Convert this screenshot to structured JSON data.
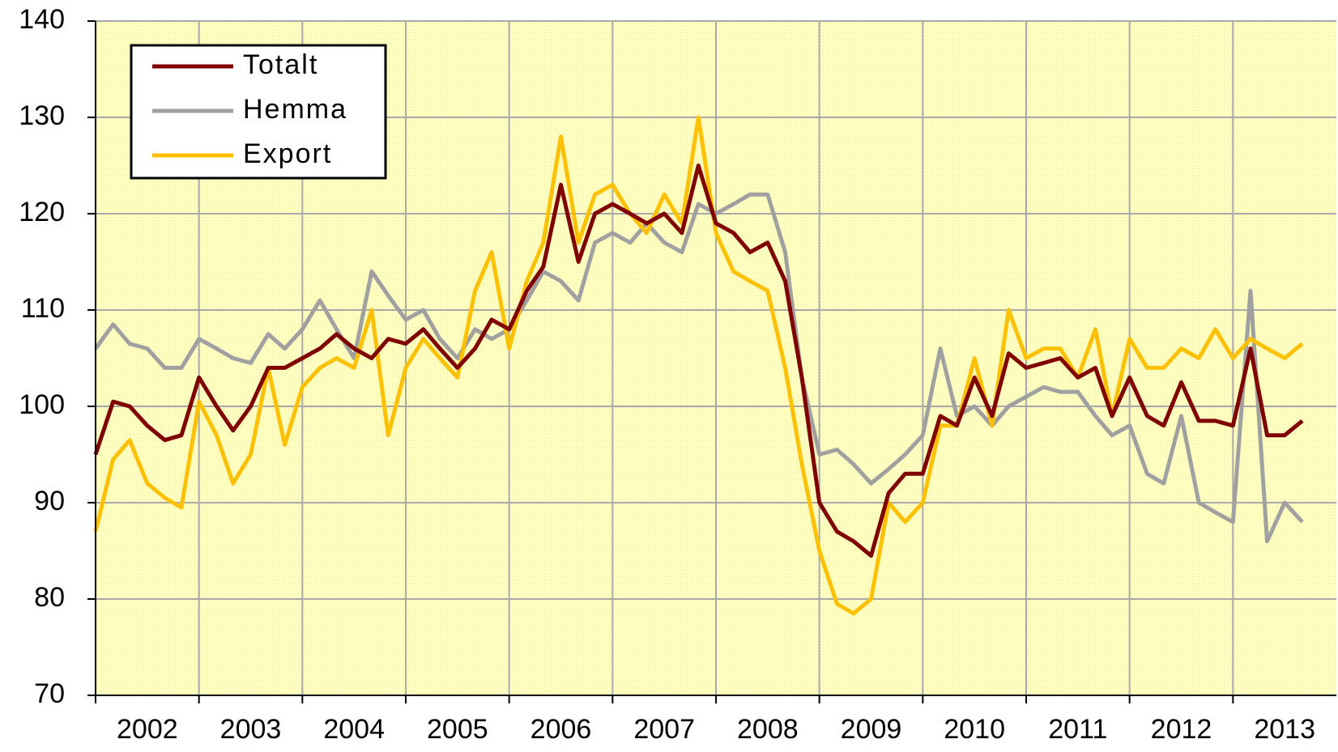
{
  "chart_data": {
    "type": "line",
    "x": [
      2002.0,
      2002.17,
      2002.33,
      2002.5,
      2002.67,
      2002.83,
      2003.0,
      2003.17,
      2003.33,
      2003.5,
      2003.67,
      2003.83,
      2004.0,
      2004.17,
      2004.33,
      2004.5,
      2004.67,
      2004.83,
      2005.0,
      2005.17,
      2005.33,
      2005.5,
      2005.67,
      2005.83,
      2006.0,
      2006.17,
      2006.33,
      2006.5,
      2006.67,
      2006.83,
      2007.0,
      2007.17,
      2007.33,
      2007.5,
      2007.67,
      2007.83,
      2008.0,
      2008.17,
      2008.33,
      2008.5,
      2008.67,
      2008.83,
      2009.0,
      2009.17,
      2009.33,
      2009.5,
      2009.67,
      2009.83,
      2010.0,
      2010.17,
      2010.33,
      2010.5,
      2010.67,
      2010.83,
      2011.0,
      2011.17,
      2011.33,
      2011.5,
      2011.67,
      2011.83,
      2012.0,
      2012.17,
      2012.33,
      2012.5,
      2012.67,
      2012.83,
      2013.0,
      2013.17,
      2013.33,
      2013.5,
      2013.67
    ],
    "series": [
      {
        "name": "Totalt",
        "color": "#800000",
        "values": [
          95,
          100.5,
          100,
          98,
          96.5,
          97,
          103,
          100,
          97.5,
          100,
          104,
          104,
          105,
          106,
          107.5,
          106,
          105,
          107,
          106.5,
          108,
          106,
          104,
          106,
          109,
          108,
          112,
          114.5,
          123,
          115,
          120,
          121,
          120,
          119,
          120,
          118,
          125,
          119,
          118,
          116,
          117,
          113,
          103,
          90,
          87,
          86,
          84.5,
          91,
          93,
          93,
          99,
          98,
          103,
          99,
          105.5,
          104,
          104.5,
          105,
          103,
          104,
          99,
          103,
          99,
          98,
          102.5,
          98.5,
          98.5,
          98,
          106,
          97,
          97,
          98.5
        ]
      },
      {
        "name": "Hemma",
        "color": "#a0a0a0",
        "values": [
          106,
          108.5,
          106.5,
          106,
          104,
          104,
          107,
          106,
          105,
          104.5,
          107.5,
          106,
          108,
          111,
          108,
          105,
          114,
          111.5,
          109,
          110,
          107,
          105,
          108,
          107,
          108,
          111,
          114,
          113,
          111,
          117,
          118,
          117,
          119,
          117,
          116,
          121,
          120,
          121,
          122,
          122,
          116,
          103,
          95,
          95.5,
          94,
          92,
          93.5,
          95,
          97,
          106,
          99,
          100,
          98,
          100,
          101,
          102,
          101.5,
          101.5,
          99,
          97,
          98,
          93,
          92,
          99,
          90,
          89,
          88,
          112,
          86,
          90,
          88
        ]
      },
      {
        "name": "Export",
        "color": "#ffc000",
        "values": [
          87,
          94.5,
          96.5,
          92,
          90.5,
          89.5,
          100.5,
          97,
          92,
          95,
          104,
          96,
          102,
          104,
          105,
          104,
          110,
          97,
          104,
          107,
          105,
          103,
          112,
          116,
          106,
          113,
          117,
          128,
          117,
          122,
          123,
          120,
          118,
          122,
          119,
          130,
          118,
          114,
          113,
          112,
          104,
          94,
          85,
          79.5,
          78.5,
          80,
          90,
          88,
          90,
          98,
          98,
          105,
          98,
          110,
          105,
          106,
          106,
          103,
          108,
          99,
          107,
          104,
          104,
          106,
          105,
          108,
          105,
          107,
          106,
          105,
          106.5
        ]
      }
    ],
    "xlim": [
      2002,
      2014
    ],
    "xticks": [
      2002,
      2003,
      2004,
      2005,
      2006,
      2007,
      2008,
      2009,
      2010,
      2011,
      2012,
      2013
    ],
    "ylim": [
      70,
      140
    ],
    "yticks": [
      70,
      80,
      90,
      100,
      110,
      120,
      130,
      140
    ],
    "grid": true,
    "legend": "upper left"
  }
}
